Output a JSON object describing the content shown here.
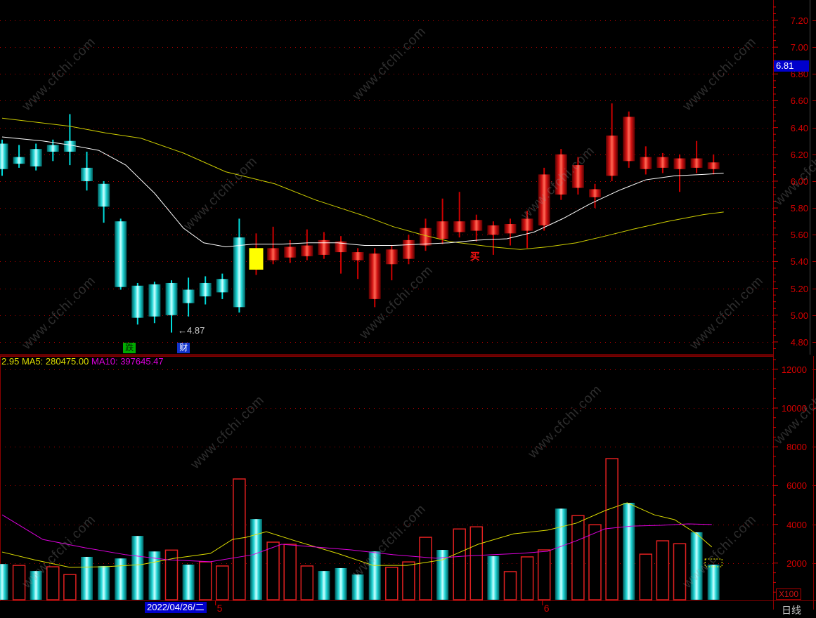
{
  "app": {
    "watermark": "www.cfchi.com",
    "period_label": "日线"
  },
  "colors": {
    "up": "#dd1111",
    "down": "#00e0e0",
    "grid": "#b00000",
    "panel_border": "#8b0000",
    "axis_text": "#d40000",
    "price_ma_fast": "#ffffff",
    "price_ma_slow": "#cccc00",
    "vol_ma5": "#dddd00",
    "vol_ma10": "#dd00dd",
    "badge_bg": "#0000cc",
    "highlight": "#ffff00"
  },
  "price_panel": {
    "y_ticks": [
      "7.20",
      "7.00",
      "6.80",
      "6.60",
      "6.40",
      "6.20",
      "6.00",
      "5.80",
      "5.60",
      "5.40",
      "5.20",
      "5.00",
      "4.80"
    ],
    "badge": {
      "value": "6.81"
    },
    "annotations": {
      "low_label": "←4.87",
      "buy": "买",
      "fall_badge": "跌",
      "wealth_badge": "财"
    }
  },
  "volume_panel": {
    "header": {
      "prefix": "2.95",
      "ma5_label": "MA5:",
      "ma5": "280475.00",
      "ma10_label": "MA10:",
      "ma10": "397645.47"
    },
    "y_ticks": [
      "12000",
      "10000",
      "8000",
      "6000",
      "4000",
      "2000"
    ],
    "unit": "X100"
  },
  "time_axis": {
    "date_badge": "2022/04/26/二",
    "month_ticks": [
      {
        "label": "5",
        "i": 12.6
      },
      {
        "label": "6",
        "i": 31.9
      }
    ]
  },
  "chart_data": {
    "type": "candlestick+volume",
    "periodicity": "daily",
    "price_axis_values": [
      7.2,
      7.0,
      6.8,
      6.6,
      6.4,
      6.2,
      6.0,
      5.8,
      5.6,
      5.4,
      5.2,
      5.0,
      4.8
    ],
    "volume_axis_values": [
      12000,
      10000,
      8000,
      6000,
      4000,
      2000
    ],
    "volume_unit": "X100",
    "candles_note": "each candle = [open, high, low, close, volume, volume_bar_color R|C]",
    "candles": [
      [
        6.28,
        6.31,
        6.04,
        6.09,
        1950,
        "C"
      ],
      [
        6.18,
        6.27,
        6.1,
        6.13,
        1880,
        "R"
      ],
      [
        6.24,
        6.28,
        6.08,
        6.11,
        1590,
        "C"
      ],
      [
        6.27,
        6.31,
        6.15,
        6.22,
        1810,
        "R"
      ],
      [
        6.3,
        6.5,
        6.12,
        6.22,
        1410,
        "R"
      ],
      [
        6.1,
        6.22,
        5.93,
        6.0,
        2320,
        "C"
      ],
      [
        5.98,
        6.0,
        5.69,
        5.81,
        1850,
        "C"
      ],
      [
        5.7,
        5.72,
        5.19,
        5.21,
        2240,
        "C"
      ],
      [
        5.22,
        5.24,
        4.93,
        4.98,
        3400,
        "C"
      ],
      [
        5.23,
        5.25,
        4.94,
        4.99,
        2600,
        "C"
      ],
      [
        5.24,
        5.26,
        4.87,
        5.0,
        2670,
        "R"
      ],
      [
        5.19,
        5.28,
        4.99,
        5.09,
        1920,
        "C"
      ],
      [
        5.24,
        5.29,
        5.08,
        5.14,
        2060,
        "R"
      ],
      [
        5.27,
        5.31,
        5.12,
        5.17,
        1850,
        "R"
      ],
      [
        5.58,
        5.72,
        5.02,
        5.06,
        6340,
        "R"
      ],
      [
        5.35,
        5.61,
        5.3,
        5.49,
        4270,
        "C"
      ],
      [
        5.41,
        5.66,
        5.38,
        5.5,
        3080,
        "R"
      ],
      [
        5.43,
        5.56,
        5.39,
        5.51,
        2970,
        "R"
      ],
      [
        5.44,
        5.64,
        5.41,
        5.52,
        1850,
        "R"
      ],
      [
        5.45,
        5.62,
        5.42,
        5.56,
        1590,
        "C"
      ],
      [
        5.47,
        5.59,
        5.31,
        5.55,
        1740,
        "C"
      ],
      [
        5.41,
        5.5,
        5.27,
        5.47,
        1410,
        "C"
      ],
      [
        5.12,
        5.5,
        5.06,
        5.46,
        2600,
        "C"
      ],
      [
        5.38,
        5.52,
        5.26,
        5.49,
        1780,
        "R"
      ],
      [
        5.42,
        5.6,
        5.38,
        5.56,
        2060,
        "R"
      ],
      [
        5.52,
        5.72,
        5.48,
        5.65,
        3330,
        "R"
      ],
      [
        5.57,
        5.87,
        5.53,
        5.7,
        2680,
        "C"
      ],
      [
        5.62,
        5.92,
        5.58,
        5.7,
        3760,
        "R"
      ],
      [
        5.63,
        5.75,
        5.55,
        5.71,
        3870,
        "R"
      ],
      [
        5.6,
        5.7,
        5.45,
        5.67,
        2360,
        "C"
      ],
      [
        5.61,
        5.72,
        5.52,
        5.68,
        1560,
        "R"
      ],
      [
        5.63,
        5.78,
        5.5,
        5.72,
        2320,
        "R"
      ],
      [
        5.67,
        6.1,
        5.63,
        6.05,
        2680,
        "R"
      ],
      [
        5.9,
        6.24,
        5.86,
        6.2,
        4810,
        "C"
      ],
      [
        5.95,
        6.18,
        5.9,
        6.12,
        4450,
        "R"
      ],
      [
        5.88,
        5.98,
        5.8,
        5.94,
        3980,
        "R"
      ],
      [
        6.04,
        6.58,
        6.0,
        6.34,
        7390,
        "R"
      ],
      [
        6.15,
        6.52,
        6.1,
        6.48,
        5110,
        "C"
      ],
      [
        6.09,
        6.26,
        6.05,
        6.18,
        2460,
        "R"
      ],
      [
        6.1,
        6.21,
        6.06,
        6.18,
        3150,
        "R"
      ],
      [
        6.09,
        6.2,
        5.92,
        6.17,
        3000,
        "R"
      ],
      [
        6.1,
        6.3,
        6.06,
        6.17,
        3590,
        "C"
      ],
      [
        6.09,
        6.2,
        6.05,
        6.14,
        1920,
        "C"
      ]
    ],
    "selected_candle_index": 15,
    "selected_volume_index": 42,
    "low_marker": {
      "index": 10,
      "price": 4.87
    },
    "buy_marker": {
      "index": 28,
      "price": 5.45
    },
    "signal_markers": [
      {
        "label": "跌",
        "i": 7.6
      },
      {
        "label": "财",
        "i": 10.8
      }
    ],
    "overlays": {
      "price_ma_fast": [
        [
          0,
          6.33
        ],
        [
          2.4,
          6.3
        ],
        [
          4,
          6.27
        ],
        [
          5.7,
          6.23
        ],
        [
          7.3,
          6.12
        ],
        [
          9,
          5.91
        ],
        [
          10.7,
          5.65
        ],
        [
          11.9,
          5.54
        ],
        [
          13.2,
          5.51
        ],
        [
          14.8,
          5.53
        ],
        [
          16.5,
          5.53
        ],
        [
          18.1,
          5.54
        ],
        [
          19.8,
          5.54
        ],
        [
          21.4,
          5.52
        ],
        [
          23.1,
          5.52
        ],
        [
          24.8,
          5.53
        ],
        [
          26.4,
          5.54
        ],
        [
          28.1,
          5.56
        ],
        [
          29.8,
          5.57
        ],
        [
          31.4,
          5.62
        ],
        [
          33.1,
          5.72
        ],
        [
          34.7,
          5.83
        ],
        [
          36.4,
          5.93
        ],
        [
          38,
          6.01
        ],
        [
          39.7,
          6.04
        ],
        [
          41.4,
          6.05
        ],
        [
          42.6,
          6.06
        ]
      ],
      "price_ma_slow": [
        [
          0,
          6.47
        ],
        [
          4,
          6.41
        ],
        [
          6.1,
          6.36
        ],
        [
          8.2,
          6.32
        ],
        [
          10.7,
          6.21
        ],
        [
          13.2,
          6.07
        ],
        [
          16.1,
          5.98
        ],
        [
          18.5,
          5.86
        ],
        [
          21.4,
          5.74
        ],
        [
          23.1,
          5.66
        ],
        [
          24.8,
          5.6
        ],
        [
          26.4,
          5.55
        ],
        [
          28.9,
          5.51
        ],
        [
          30.6,
          5.49
        ],
        [
          32.2,
          5.51
        ],
        [
          33.9,
          5.54
        ],
        [
          35.6,
          5.59
        ],
        [
          37.2,
          5.64
        ],
        [
          39.3,
          5.7
        ],
        [
          41.4,
          5.75
        ],
        [
          42.6,
          5.77
        ]
      ],
      "vol_ma5": [
        [
          0,
          2570
        ],
        [
          1.9,
          2170
        ],
        [
          4,
          1780
        ],
        [
          6.1,
          1810
        ],
        [
          8.2,
          1920
        ],
        [
          10.2,
          2250
        ],
        [
          12.3,
          2500
        ],
        [
          13.6,
          3220
        ],
        [
          14.4,
          3330
        ],
        [
          15.6,
          3620
        ],
        [
          17.3,
          3150
        ],
        [
          19.8,
          2500
        ],
        [
          21.9,
          1880
        ],
        [
          23.9,
          1880
        ],
        [
          26,
          2170
        ],
        [
          28.1,
          2970
        ],
        [
          30.2,
          3510
        ],
        [
          32.2,
          3700
        ],
        [
          33.9,
          4060
        ],
        [
          35.6,
          4710
        ],
        [
          36.9,
          5110
        ],
        [
          38.5,
          4490
        ],
        [
          39.7,
          4240
        ],
        [
          41,
          3510
        ],
        [
          41.9,
          2830
        ]
      ],
      "vol_ma10": [
        [
          0,
          4490
        ],
        [
          2.4,
          3220
        ],
        [
          4.9,
          2790
        ],
        [
          7.3,
          2430
        ],
        [
          9.8,
          2170
        ],
        [
          12.3,
          2070
        ],
        [
          14.8,
          2430
        ],
        [
          16.5,
          2970
        ],
        [
          18.1,
          2860
        ],
        [
          20.6,
          2680
        ],
        [
          23.1,
          2430
        ],
        [
          25.6,
          2250
        ],
        [
          27.3,
          2360
        ],
        [
          28.9,
          2430
        ],
        [
          30.6,
          2500
        ],
        [
          32.2,
          2610
        ],
        [
          33.9,
          3150
        ],
        [
          35.6,
          3770
        ],
        [
          37.2,
          3910
        ],
        [
          38.9,
          3950
        ],
        [
          40.5,
          4020
        ],
        [
          41.9,
          3990
        ]
      ]
    }
  }
}
